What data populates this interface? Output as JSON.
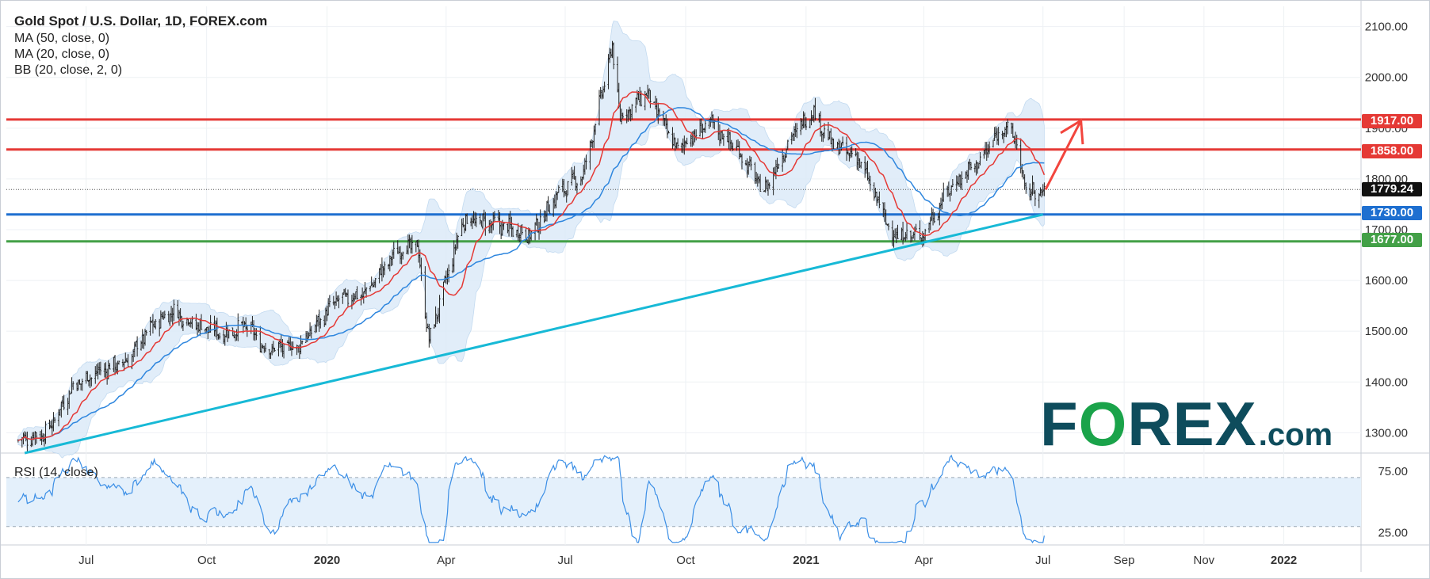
{
  "header": {
    "title": "Gold Spot / U.S. Dollar, 1D, FOREX.com",
    "indicators": [
      "MA (50, close, 0)",
      "MA (20, close, 0)",
      "BB (20, close, 2, 0)"
    ],
    "rsi_label": "RSI (14, close)"
  },
  "logo": {
    "f": "F",
    "o": "O",
    "rex": "REX",
    "dotcom": ".com"
  },
  "colors": {
    "resistance": "#e53935",
    "support_blue": "#1e6fd0",
    "support_green": "#43a047",
    "trendline": "#17b9d6",
    "ma20": "#e53935",
    "ma50": "#2e86de",
    "bb_fill": "#dcebf8",
    "rsi_line": "#3c8fe6",
    "rsi_band": "#e4f0fb",
    "current_tag": "#111111",
    "arrow": "#f2453d"
  },
  "chart_data": {
    "type": "candlestick",
    "title": "Gold Spot / U.S. Dollar, 1D, FOREX.com",
    "ylim": [
      1260,
      2140
    ],
    "y_ticks": [
      1300,
      1400,
      1500,
      1600,
      1700,
      1800,
      1900,
      2000,
      2100
    ],
    "y_tick_labels": [
      "1300.00",
      "1400.00",
      "1500.00",
      "1600.00",
      "1700.00",
      "1800.00",
      "1900.00",
      "2000.00",
      "2100.00"
    ],
    "x_time_range": [
      "2019-05-01",
      "2022-03-01"
    ],
    "x_ticks": [
      {
        "label": "Jul",
        "date": "2019-07-01",
        "bold": false
      },
      {
        "label": "Oct",
        "date": "2019-10-01",
        "bold": false
      },
      {
        "label": "2020",
        "date": "2020-01-01",
        "bold": true
      },
      {
        "label": "Apr",
        "date": "2020-04-01",
        "bold": false
      },
      {
        "label": "Jul",
        "date": "2020-07-01",
        "bold": false
      },
      {
        "label": "Oct",
        "date": "2020-10-01",
        "bold": false
      },
      {
        "label": "2021",
        "date": "2021-01-01",
        "bold": true
      },
      {
        "label": "Apr",
        "date": "2021-04-01",
        "bold": false
      },
      {
        "label": "Jul",
        "date": "2021-07-01",
        "bold": false
      },
      {
        "label": "Sep",
        "date": "2021-09-01",
        "bold": false
      },
      {
        "label": "Nov",
        "date": "2021-11-01",
        "bold": false
      },
      {
        "label": "2022",
        "date": "2022-01-01",
        "bold": true
      }
    ],
    "price_path": [
      [
        "2019-05-10",
        1285
      ],
      [
        "2019-06-01",
        1300
      ],
      [
        "2019-06-20",
        1390
      ],
      [
        "2019-07-10",
        1420
      ],
      [
        "2019-08-01",
        1440
      ],
      [
        "2019-08-20",
        1510
      ],
      [
        "2019-09-05",
        1540
      ],
      [
        "2019-09-25",
        1510
      ],
      [
        "2019-10-15",
        1495
      ],
      [
        "2019-11-01",
        1510
      ],
      [
        "2019-11-15",
        1465
      ],
      [
        "2019-12-10",
        1470
      ],
      [
        "2020-01-08",
        1560
      ],
      [
        "2020-01-30",
        1575
      ],
      [
        "2020-02-24",
        1660
      ],
      [
        "2020-03-10",
        1670
      ],
      [
        "2020-03-19",
        1480
      ],
      [
        "2020-04-14",
        1720
      ],
      [
        "2020-05-10",
        1710
      ],
      [
        "2020-06-05",
        1690
      ],
      [
        "2020-06-25",
        1770
      ],
      [
        "2020-07-15",
        1810
      ],
      [
        "2020-08-06",
        2060
      ],
      [
        "2020-08-12",
        1920
      ],
      [
        "2020-09-01",
        1970
      ],
      [
        "2020-09-24",
        1860
      ],
      [
        "2020-10-20",
        1910
      ],
      [
        "2020-11-09",
        1860
      ],
      [
        "2020-11-30",
        1775
      ],
      [
        "2020-12-20",
        1880
      ],
      [
        "2021-01-06",
        1935
      ],
      [
        "2021-01-20",
        1870
      ],
      [
        "2021-02-10",
        1840
      ],
      [
        "2021-03-08",
        1690
      ],
      [
        "2021-03-31",
        1690
      ],
      [
        "2021-04-20",
        1780
      ],
      [
        "2021-05-15",
        1840
      ],
      [
        "2021-06-01",
        1905
      ],
      [
        "2021-06-10",
        1880
      ],
      [
        "2021-06-17",
        1780
      ],
      [
        "2021-06-29",
        1770
      ],
      [
        "2021-07-02",
        1779
      ]
    ],
    "horizontal_levels": [
      {
        "value": 1917,
        "label": "1917.00",
        "color": "#e53935"
      },
      {
        "value": 1858,
        "label": "1858.00",
        "color": "#e53935"
      },
      {
        "value": 1730,
        "label": "1730.00",
        "color": "#1e6fd0"
      },
      {
        "value": 1677,
        "label": "1677.00",
        "color": "#43a047"
      }
    ],
    "current_price": {
      "value": 1779.24,
      "label": "1779.24"
    },
    "trendline": {
      "start": [
        "2019-05-15",
        1260
      ],
      "end": [
        "2021-07-01",
        1730
      ]
    },
    "arrow": {
      "points": [
        [
          "2021-07-03",
          1779
        ],
        [
          "2021-07-27",
          1903
        ]
      ],
      "head": [
        "2021-07-30",
        1915
      ]
    },
    "indicators": [
      "MA (50, close, 0)",
      "MA (20, close, 0)",
      "BB (20, close, 2, 0)"
    ],
    "rsi": {
      "label": "RSI (14, close)",
      "ylim": [
        15,
        90
      ],
      "levels": [
        30,
        70
      ],
      "y_ticks": [
        25,
        75
      ],
      "y_tick_labels": [
        "25.00",
        "75.00"
      ]
    }
  }
}
